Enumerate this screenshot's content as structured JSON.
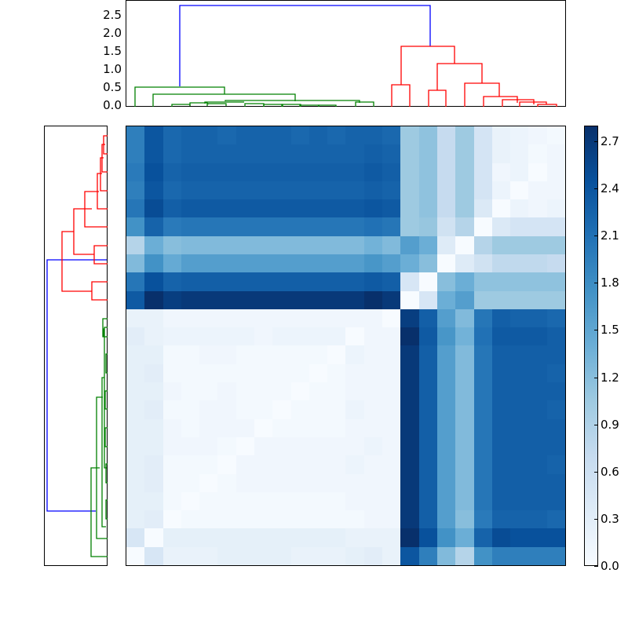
{
  "chart_data": [
    {
      "type": "dendrogram",
      "name": "top-dendrogram",
      "orientation": "top",
      "ylim": [
        0,
        2.9
      ],
      "yticks": [
        "0.0",
        "0.5",
        "1.0",
        "1.5",
        "2.0",
        "2.5"
      ],
      "colors": {
        "root": "#0000ff",
        "cluster_a": "#008000",
        "cluster_b": "#ff0000"
      },
      "root_height": 2.8,
      "cluster_a_height": 0.55,
      "cluster_b_height": 1.65,
      "leaf_count": 24
    },
    {
      "type": "dendrogram",
      "name": "left-dendrogram",
      "orientation": "left",
      "colors": {
        "root": "#0000ff",
        "cluster_a": "#008000",
        "cluster_b": "#ff0000"
      },
      "leaf_count": 24
    },
    {
      "type": "heatmap",
      "name": "distance-matrix",
      "rows": 24,
      "cols": 24,
      "colormap": "Blues",
      "vmin": 0.0,
      "vmax": 2.8,
      "values": [
        [
          1.95,
          2.4,
          2.2,
          2.25,
          2.25,
          2.2,
          2.25,
          2.25,
          2.25,
          2.2,
          2.25,
          2.2,
          2.25,
          2.25,
          2.2,
          1.05,
          1.15,
          0.7,
          1.05,
          0.5,
          0.2,
          0.15,
          0.1,
          0.05
        ],
        [
          1.95,
          2.4,
          2.2,
          2.25,
          2.25,
          2.25,
          2.25,
          2.25,
          2.25,
          2.25,
          2.25,
          2.25,
          2.25,
          2.3,
          2.25,
          1.05,
          1.15,
          0.7,
          1.05,
          0.5,
          0.2,
          0.15,
          0.05,
          0.1
        ],
        [
          2.0,
          2.45,
          2.25,
          2.3,
          2.3,
          2.3,
          2.3,
          2.3,
          2.3,
          2.3,
          2.3,
          2.3,
          2.3,
          2.35,
          2.3,
          1.05,
          1.15,
          0.7,
          1.05,
          0.5,
          0.1,
          0.15,
          0.0,
          0.1
        ],
        [
          1.95,
          2.4,
          2.2,
          2.25,
          2.25,
          2.25,
          2.25,
          2.25,
          2.25,
          2.25,
          2.25,
          2.25,
          2.25,
          2.3,
          2.25,
          1.05,
          1.15,
          0.7,
          1.05,
          0.5,
          0.15,
          0.0,
          0.1,
          0.1
        ],
        [
          2.05,
          2.5,
          2.3,
          2.35,
          2.35,
          2.35,
          2.35,
          2.35,
          2.35,
          2.35,
          2.35,
          2.35,
          2.35,
          2.4,
          2.35,
          1.05,
          1.15,
          0.7,
          1.05,
          0.4,
          0.0,
          0.15,
          0.1,
          0.15
        ],
        [
          1.75,
          2.25,
          2.0,
          2.05,
          2.05,
          2.05,
          2.05,
          2.05,
          2.05,
          2.05,
          2.05,
          2.05,
          2.05,
          2.1,
          2.05,
          1.05,
          1.1,
          0.55,
          0.85,
          0.0,
          0.4,
          0.5,
          0.5,
          0.5
        ],
        [
          0.85,
          1.4,
          1.2,
          1.25,
          1.25,
          1.25,
          1.25,
          1.25,
          1.25,
          1.25,
          1.25,
          1.25,
          1.25,
          1.35,
          1.25,
          1.6,
          1.4,
          0.35,
          0.0,
          0.85,
          1.05,
          1.05,
          1.05,
          1.05
        ],
        [
          1.25,
          1.75,
          1.45,
          1.6,
          1.6,
          1.6,
          1.6,
          1.6,
          1.6,
          1.6,
          1.6,
          1.6,
          1.6,
          1.7,
          1.6,
          1.4,
          1.2,
          0.0,
          0.35,
          0.55,
          0.75,
          0.75,
          0.75,
          0.7
        ],
        [
          2.05,
          2.45,
          2.25,
          2.3,
          2.3,
          2.3,
          2.3,
          2.3,
          2.3,
          2.3,
          2.3,
          2.3,
          2.3,
          2.35,
          2.3,
          0.45,
          0.0,
          1.2,
          1.4,
          1.15,
          1.15,
          1.15,
          1.15,
          1.15
        ],
        [
          2.35,
          2.8,
          2.65,
          2.7,
          2.7,
          2.7,
          2.7,
          2.7,
          2.7,
          2.7,
          2.7,
          2.7,
          2.7,
          2.8,
          2.7,
          0.0,
          0.45,
          1.4,
          1.6,
          1.05,
          1.05,
          1.05,
          1.05,
          1.05
        ],
        [
          0.2,
          0.2,
          0.1,
          0.1,
          0.1,
          0.1,
          0.1,
          0.1,
          0.1,
          0.1,
          0.1,
          0.1,
          0.1,
          0.1,
          0.0,
          2.65,
          2.3,
          1.6,
          1.25,
          2.05,
          2.3,
          2.25,
          2.25,
          2.2
        ],
        [
          0.3,
          0.2,
          0.15,
          0.15,
          0.15,
          0.15,
          0.15,
          0.1,
          0.15,
          0.15,
          0.15,
          0.15,
          0.0,
          0.1,
          0.1,
          2.8,
          2.35,
          1.7,
          1.35,
          2.1,
          2.35,
          2.35,
          2.35,
          2.3
        ],
        [
          0.25,
          0.25,
          0.05,
          0.05,
          0.1,
          0.1,
          0.05,
          0.05,
          0.05,
          0.05,
          0.05,
          0.0,
          0.15,
          0.1,
          0.1,
          2.7,
          2.3,
          1.6,
          1.25,
          2.05,
          2.3,
          2.3,
          2.3,
          2.3
        ],
        [
          0.25,
          0.3,
          0.05,
          0.05,
          0.05,
          0.05,
          0.05,
          0.05,
          0.05,
          0.05,
          0.0,
          0.05,
          0.1,
          0.1,
          0.1,
          2.7,
          2.3,
          1.6,
          1.25,
          2.05,
          2.3,
          2.3,
          2.3,
          2.25
        ],
        [
          0.25,
          0.25,
          0.1,
          0.05,
          0.05,
          0.1,
          0.05,
          0.05,
          0.05,
          0.0,
          0.05,
          0.05,
          0.1,
          0.1,
          0.1,
          2.7,
          2.3,
          1.6,
          1.25,
          2.05,
          2.3,
          2.3,
          2.3,
          2.3
        ],
        [
          0.25,
          0.3,
          0.05,
          0.05,
          0.1,
          0.1,
          0.05,
          0.05,
          0.0,
          0.05,
          0.05,
          0.05,
          0.15,
          0.1,
          0.1,
          2.7,
          2.3,
          1.6,
          1.25,
          2.05,
          2.3,
          2.3,
          2.3,
          2.25
        ],
        [
          0.25,
          0.25,
          0.1,
          0.05,
          0.1,
          0.1,
          0.1,
          0.0,
          0.05,
          0.05,
          0.05,
          0.05,
          0.1,
          0.1,
          0.1,
          2.7,
          2.3,
          1.6,
          1.25,
          2.05,
          2.3,
          2.3,
          2.3,
          2.3
        ],
        [
          0.25,
          0.25,
          0.1,
          0.1,
          0.1,
          0.05,
          0.0,
          0.1,
          0.1,
          0.1,
          0.1,
          0.1,
          0.1,
          0.15,
          0.1,
          2.7,
          2.3,
          1.6,
          1.25,
          2.05,
          2.3,
          2.3,
          2.3,
          2.3
        ],
        [
          0.25,
          0.3,
          0.05,
          0.05,
          0.05,
          0.0,
          0.1,
          0.1,
          0.1,
          0.1,
          0.1,
          0.1,
          0.15,
          0.1,
          0.1,
          2.7,
          2.3,
          1.6,
          1.25,
          2.05,
          2.3,
          2.3,
          2.3,
          2.25
        ],
        [
          0.25,
          0.3,
          0.05,
          0.05,
          0.0,
          0.05,
          0.1,
          0.1,
          0.1,
          0.1,
          0.1,
          0.1,
          0.1,
          0.1,
          0.1,
          2.7,
          2.3,
          1.6,
          1.25,
          2.05,
          2.3,
          2.3,
          2.3,
          2.3
        ],
        [
          0.25,
          0.25,
          0.05,
          0.0,
          0.05,
          0.05,
          0.05,
          0.05,
          0.05,
          0.05,
          0.05,
          0.05,
          0.1,
          0.1,
          0.1,
          2.7,
          2.3,
          1.6,
          1.25,
          2.05,
          2.3,
          2.3,
          2.3,
          2.3
        ],
        [
          0.25,
          0.3,
          0.0,
          0.05,
          0.05,
          0.05,
          0.05,
          0.05,
          0.05,
          0.05,
          0.05,
          0.05,
          0.05,
          0.1,
          0.1,
          2.7,
          2.3,
          1.6,
          1.2,
          2.0,
          2.25,
          2.25,
          2.25,
          2.2
        ],
        [
          0.45,
          0.0,
          0.25,
          0.25,
          0.25,
          0.25,
          0.25,
          0.25,
          0.25,
          0.25,
          0.25,
          0.25,
          0.2,
          0.2,
          0.2,
          2.8,
          2.45,
          1.75,
          1.4,
          2.25,
          2.5,
          2.45,
          2.45,
          2.45
        ],
        [
          0.0,
          0.45,
          0.2,
          0.2,
          0.2,
          0.25,
          0.25,
          0.25,
          0.25,
          0.2,
          0.2,
          0.2,
          0.25,
          0.3,
          0.2,
          2.4,
          1.95,
          1.25,
          0.85,
          1.75,
          1.95,
          1.95,
          1.95,
          1.95
        ]
      ]
    },
    {
      "type": "colorbar",
      "name": "colorbar",
      "range": [
        0.0,
        2.8
      ],
      "ticks": [
        "0.0",
        "0.3",
        "0.6",
        "0.9",
        "1.2",
        "1.5",
        "1.8",
        "2.1",
        "2.4",
        "2.7"
      ]
    }
  ],
  "top_dendro_yticks": [
    {
      "label": "0.0",
      "value": 0.0
    },
    {
      "label": "0.5",
      "value": 0.5
    },
    {
      "label": "1.0",
      "value": 1.0
    },
    {
      "label": "1.5",
      "value": 1.5
    },
    {
      "label": "2.0",
      "value": 2.0
    },
    {
      "label": "2.5",
      "value": 2.5
    }
  ],
  "colorbar_ticks": [
    {
      "label": "0.0",
      "value": 0.0
    },
    {
      "label": "0.3",
      "value": 0.3
    },
    {
      "label": "0.6",
      "value": 0.6
    },
    {
      "label": "0.9",
      "value": 0.9
    },
    {
      "label": "1.2",
      "value": 1.2
    },
    {
      "label": "1.5",
      "value": 1.5
    },
    {
      "label": "1.8",
      "value": 1.8
    },
    {
      "label": "2.1",
      "value": 2.1
    },
    {
      "label": "2.4",
      "value": 2.4
    },
    {
      "label": "2.7",
      "value": 2.7
    }
  ],
  "colors": {
    "dendro_root": "#0000ff",
    "dendro_green": "#008000",
    "dendro_red": "#ff0000",
    "cmap_stops": [
      "#f7fbff",
      "#deebf7",
      "#c6dbef",
      "#9ecae1",
      "#6baed6",
      "#4292c6",
      "#2171b5",
      "#08519c",
      "#08306b"
    ]
  }
}
